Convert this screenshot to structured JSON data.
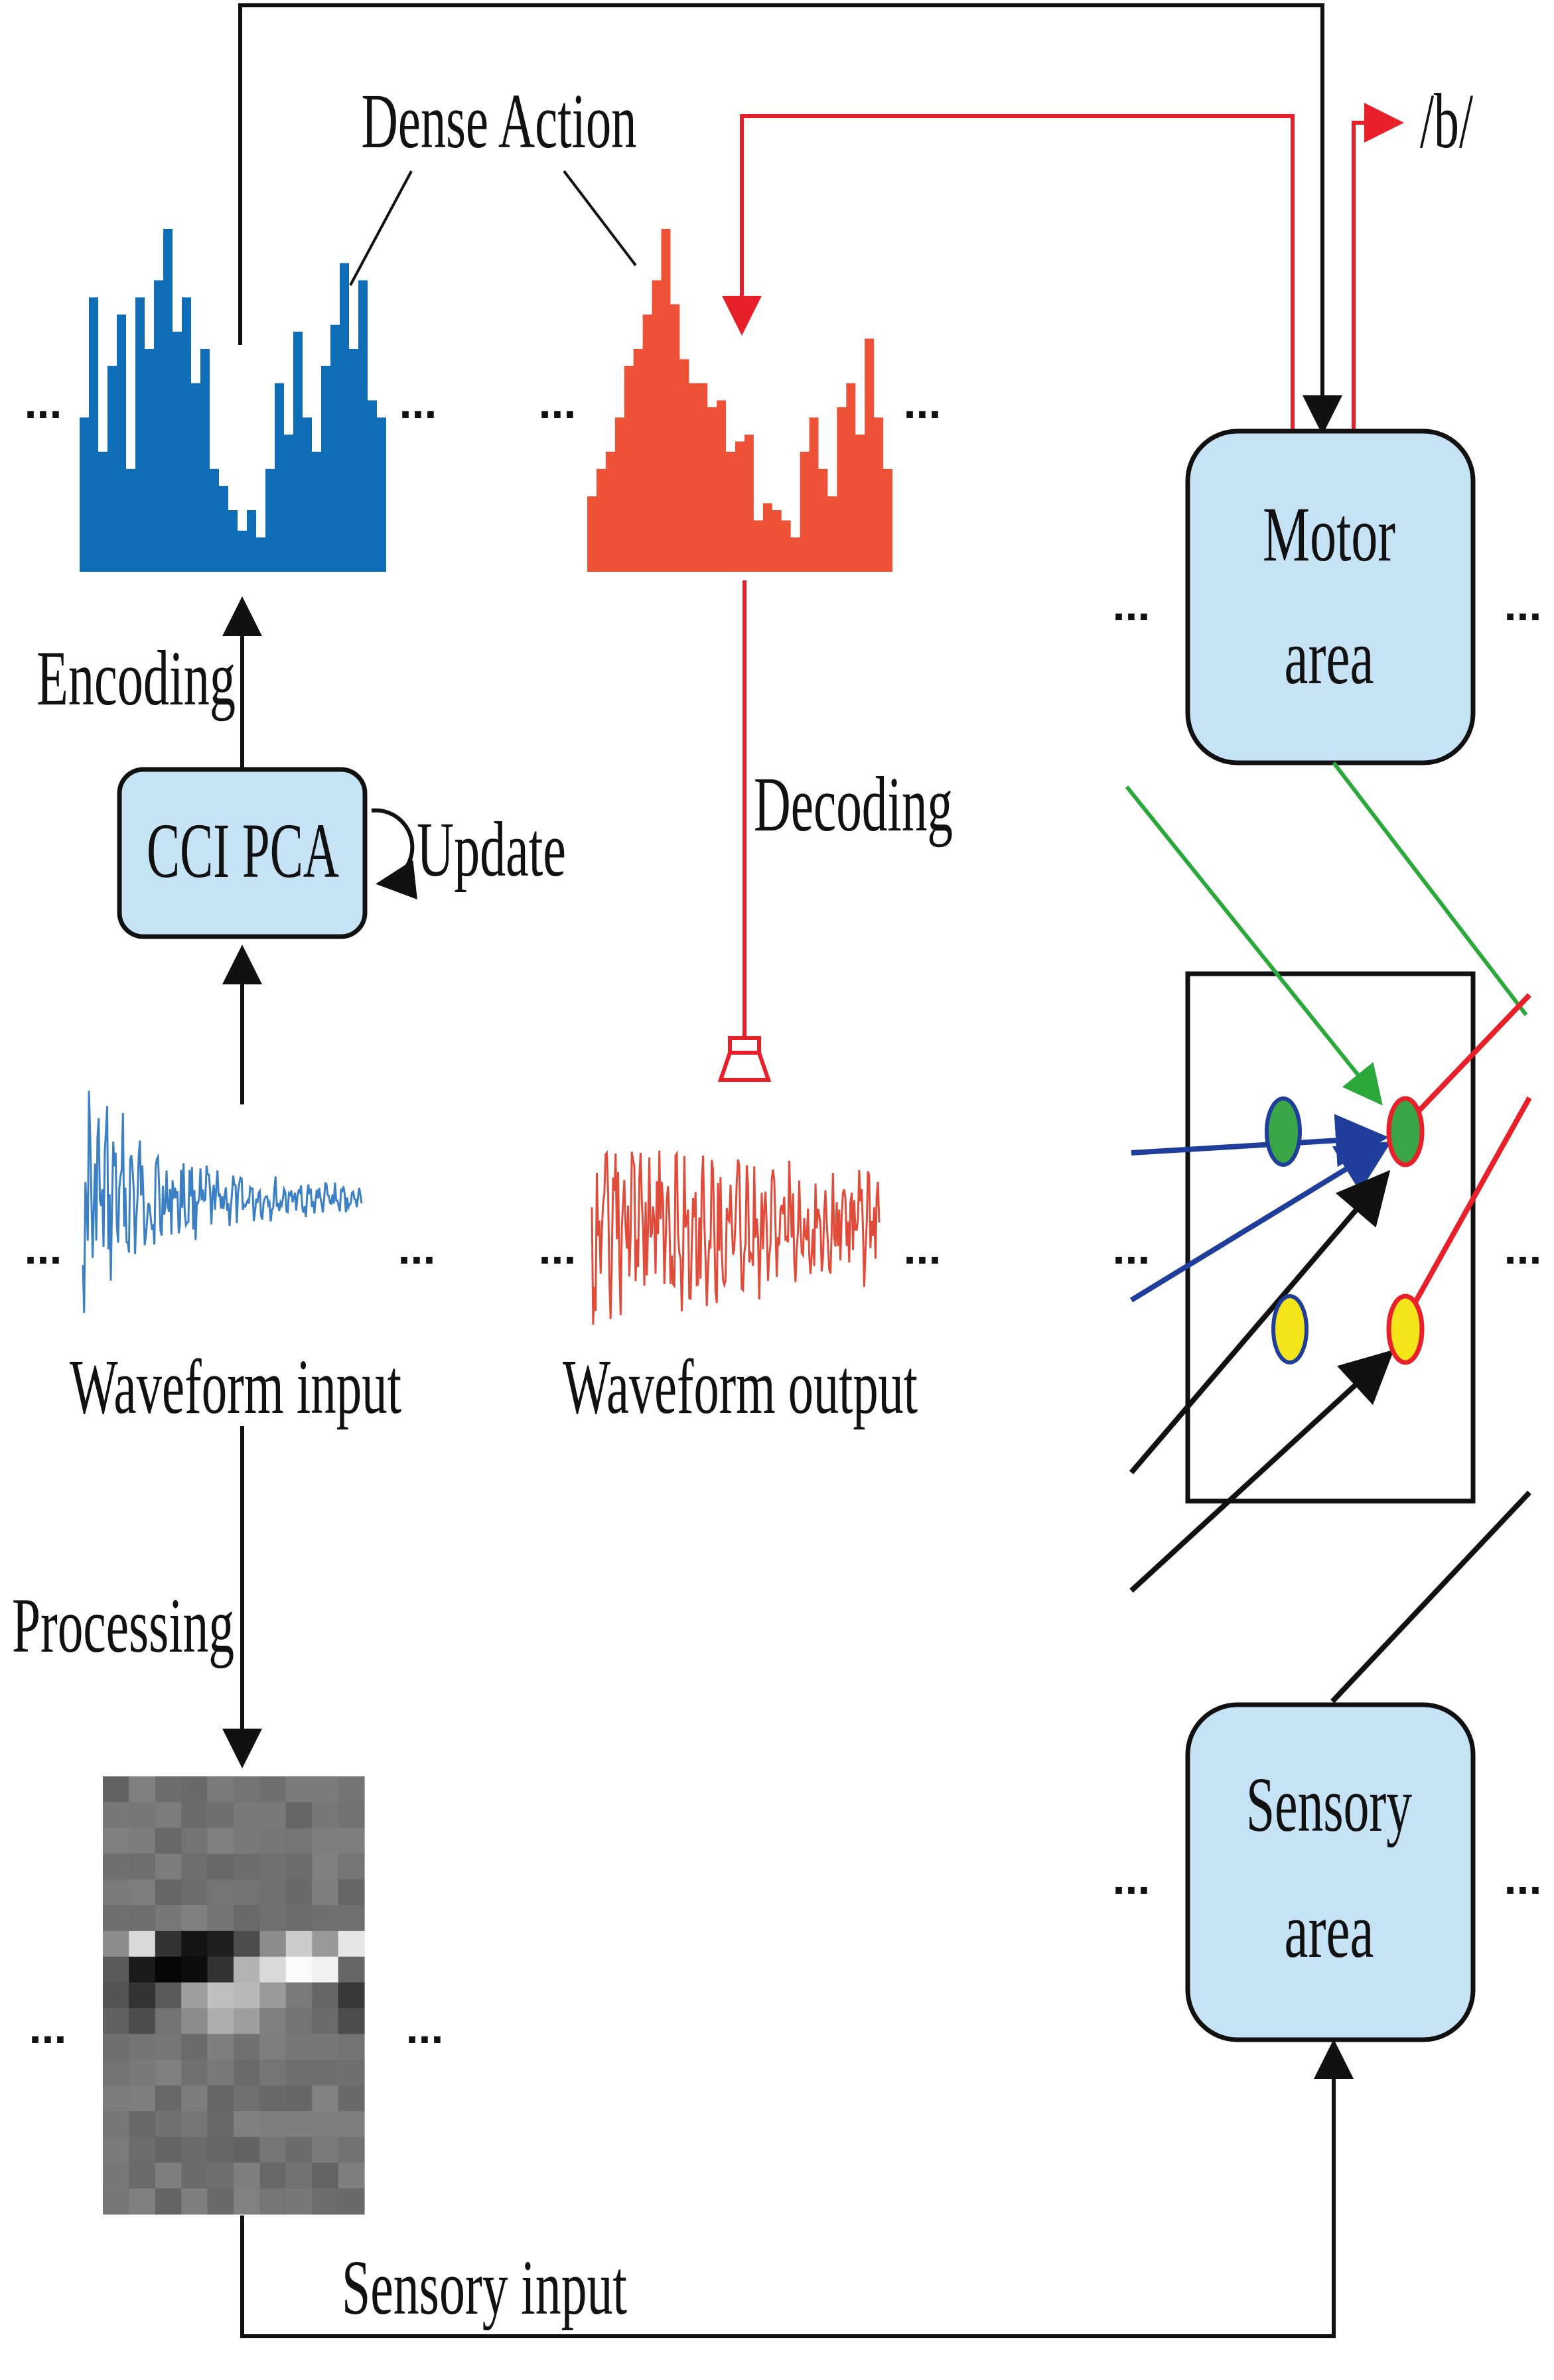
{
  "colors": {
    "blue_hist": "#0f6db5",
    "red_hist": "#ee5236",
    "box_fill": "#c6e3f6",
    "red_line": "#e8202a",
    "green_line": "#2aa83a",
    "blue_line": "#1f3d9a",
    "neuron_green": "#3aa547",
    "neuron_yellow": "#f4e41a",
    "wave_blue": "#3b7fc4",
    "wave_red": "#e14b3a"
  },
  "labels": {
    "dense_action": "Dense Action",
    "phoneme": "/b/",
    "encoding": "Encoding",
    "decoding": "Decoding",
    "update": "Update",
    "waveform_input": "Waveform input",
    "waveform_output": "Waveform output",
    "processing": "Processing",
    "sensory_input": "Sensory input",
    "ellipsis": "..."
  },
  "boxes": {
    "ccipca": "CCI PCA",
    "motor_line1": "Motor",
    "motor_line2": "area",
    "sensory_line1": "Sensory",
    "sensory_line2": "area"
  },
  "icons": {
    "speaker": "speaker-icon",
    "update_loop": "loop-arrow-icon"
  }
}
